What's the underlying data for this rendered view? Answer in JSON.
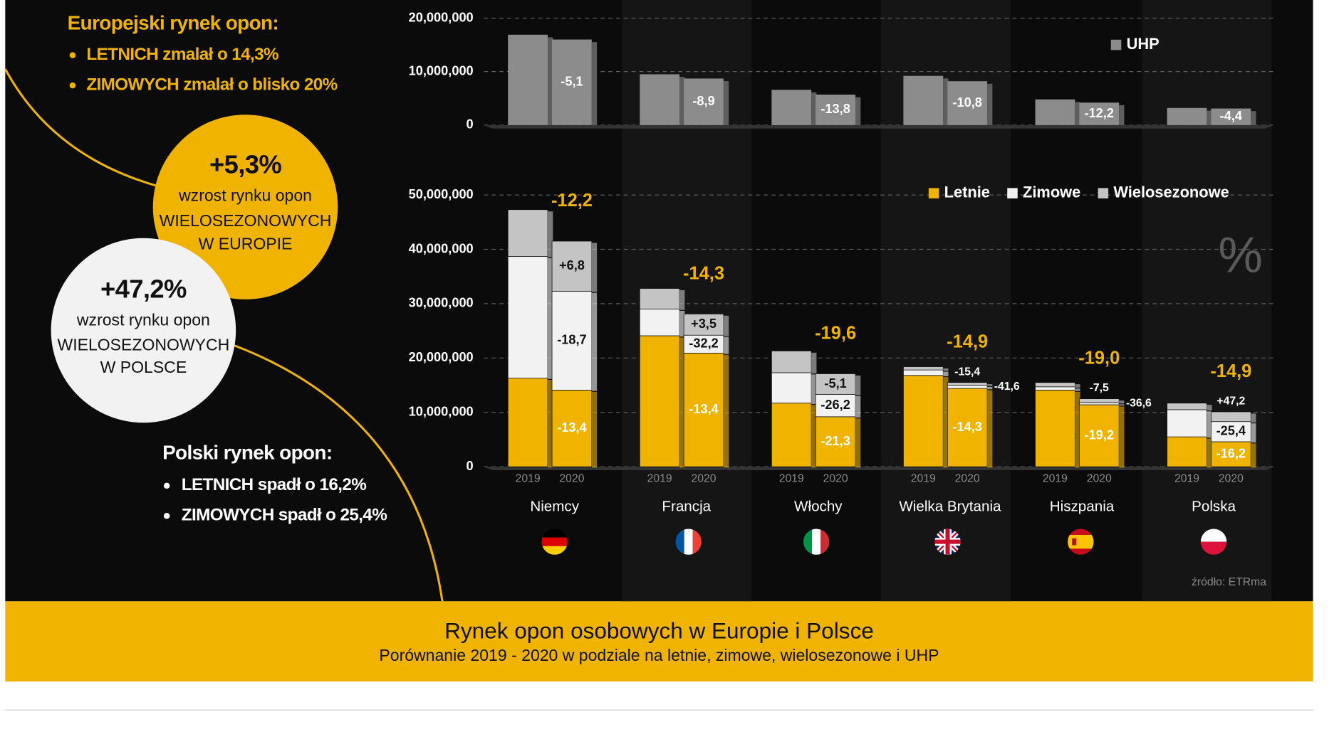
{
  "panel": {
    "europe": {
      "heading": "Europejski rynek opon:",
      "items": [
        "LETNICH zmalał o 14,3%",
        "ZIMOWYCH zmalał o blisko 20%"
      ]
    },
    "europe_badge": {
      "value": "+5,3%",
      "lines": [
        "wzrost rynku opon",
        "WIELOSEZONOWYCH",
        "W EUROPIE"
      ]
    },
    "poland_badge": {
      "value": "+47,2%",
      "lines": [
        "wzrost rynku opon",
        "WIELOSEZONOWYCH",
        "W POLSCE"
      ]
    },
    "poland": {
      "heading": "Polski rynek opon:",
      "items": [
        "LETNICH spadł o 16,2%",
        "ZIMOWYCH spadł o 25,4%"
      ]
    }
  },
  "chart_data": [
    {
      "type": "bar",
      "categories": [
        null,
        null,
        null,
        null,
        null,
        null
      ],
      "series": [
        {
          "name": "UHP",
          "color": "#8c8c8c",
          "values": [
            [
              16900000,
              16000000
            ],
            [
              9500000,
              8700000
            ],
            [
              6600000,
              5700000
            ],
            [
              9200000,
              8200000
            ],
            [
              4800000,
              4200000
            ],
            [
              3200000,
              3100000
            ]
          ],
          "changes": [
            {
              "value": -5.1,
              "label": "-5,1"
            },
            {
              "value": -8.9,
              "label": "-8,9"
            },
            {
              "value": -13.8,
              "label": "-13,8"
            },
            {
              "value": -10.8,
              "label": "-10,8"
            },
            {
              "value": -12.2,
              "label": "-12,2"
            },
            {
              "value": -4.4,
              "label": "-4,4"
            }
          ]
        }
      ],
      "ylim": [
        0,
        20000000
      ],
      "yticks": [
        0,
        {
          "value": 10000000,
          "label": "10,000,000"
        },
        {
          "value": 20000000,
          "label": "20,000,000"
        }
      ],
      "grid": true,
      "legend": "upper right"
    },
    {
      "type": "stacked_bar",
      "categories": [
        "Niemcy",
        "Francja",
        "Włochy",
        "Wielka Brytania",
        "Hiszpania",
        "Polska"
      ],
      "years": [
        "2019",
        "2020"
      ],
      "series": [
        {
          "name": "Letnie",
          "color": "#f0b400",
          "values": [
            [
              16300000,
              14100000
            ],
            [
              24100000,
              20900000
            ],
            [
              11700000,
              9200000
            ],
            [
              16800000,
              14400000
            ],
            [
              14100000,
              11400000
            ],
            [
              5500000,
              4600000
            ]
          ],
          "changes": [
            {
              "value": -13.4,
              "label": "-13,4"
            },
            {
              "value": -13.4,
              "label": "-13,4"
            },
            {
              "value": -21.3,
              "label": "-21,3"
            },
            {
              "value": -14.3,
              "label": "-14,3"
            },
            {
              "value": -19.2,
              "label": "-19,2"
            },
            {
              "value": -16.2,
              "label": "-16,2"
            }
          ]
        },
        {
          "name": "Zimowe",
          "color": "#f2f2f2",
          "values": [
            [
              22400000,
              18200000
            ],
            [
              4900000,
              3300000
            ],
            [
              5600000,
              4100000
            ],
            [
              1000000,
              600000
            ],
            [
              600000,
              400000
            ],
            [
              5000000,
              3700000
            ]
          ],
          "changes": [
            {
              "value": -18.7,
              "label": "-18,7"
            },
            {
              "value": -32.2,
              "label": "-32,2"
            },
            {
              "value": -26.2,
              "label": "-26,2"
            },
            {
              "value": -41.6,
              "label": "-41,6"
            },
            {
              "value": -36.6,
              "label": "-36,6"
            },
            {
              "value": -25.4,
              "label": "-25,4"
            }
          ]
        },
        {
          "name": "Wielosezonowe",
          "color": "#c4c4c4",
          "values": [
            [
              8600000,
              9200000
            ],
            [
              3800000,
              3900000
            ],
            [
              4000000,
              3800000
            ],
            [
              600000,
              500000
            ],
            [
              800000,
              700000
            ],
            [
              1200000,
              1800000
            ]
          ],
          "changes": [
            {
              "value": 6.8,
              "label": "+6,8"
            },
            {
              "value": 3.5,
              "label": "+3,5"
            },
            {
              "value": -5.1,
              "label": "-5,1"
            },
            {
              "value": -15.4,
              "label": "-15,4"
            },
            {
              "value": -7.5,
              "label": "-7,5"
            },
            {
              "value": 47.2,
              "label": "+47,2"
            }
          ]
        }
      ],
      "total_changes": [
        {
          "value": -12.2,
          "label": "-12,2"
        },
        {
          "value": -14.3,
          "label": "-14,3"
        },
        {
          "value": -19.6,
          "label": "-19,6"
        },
        {
          "value": -14.9,
          "label": "-14,9"
        },
        {
          "value": -19.0,
          "label": "-19,0"
        },
        {
          "value": -14.9,
          "label": "-14,9"
        }
      ],
      "total_change_color": "#f0b400",
      "ylim": [
        0,
        50000000
      ],
      "yticks": [
        0,
        {
          "value": 10000000,
          "label": "10,000,000"
        },
        {
          "value": 20000000,
          "label": "20,000,000"
        },
        {
          "value": 30000000,
          "label": "30,000,000"
        },
        {
          "value": 40000000,
          "label": "40,000,000"
        },
        {
          "value": 50000000,
          "label": "50,000,000"
        }
      ],
      "grid": true,
      "legend": "upper right"
    }
  ],
  "watermark": "%",
  "source": "źródło: ETRma",
  "footer": {
    "title": "Rynek opon osobowych w Europie i Polsce",
    "subtitle": "Porównanie 2019 - 2020 w podziale na letnie, zimowe, wielosezonowe i UHP"
  }
}
